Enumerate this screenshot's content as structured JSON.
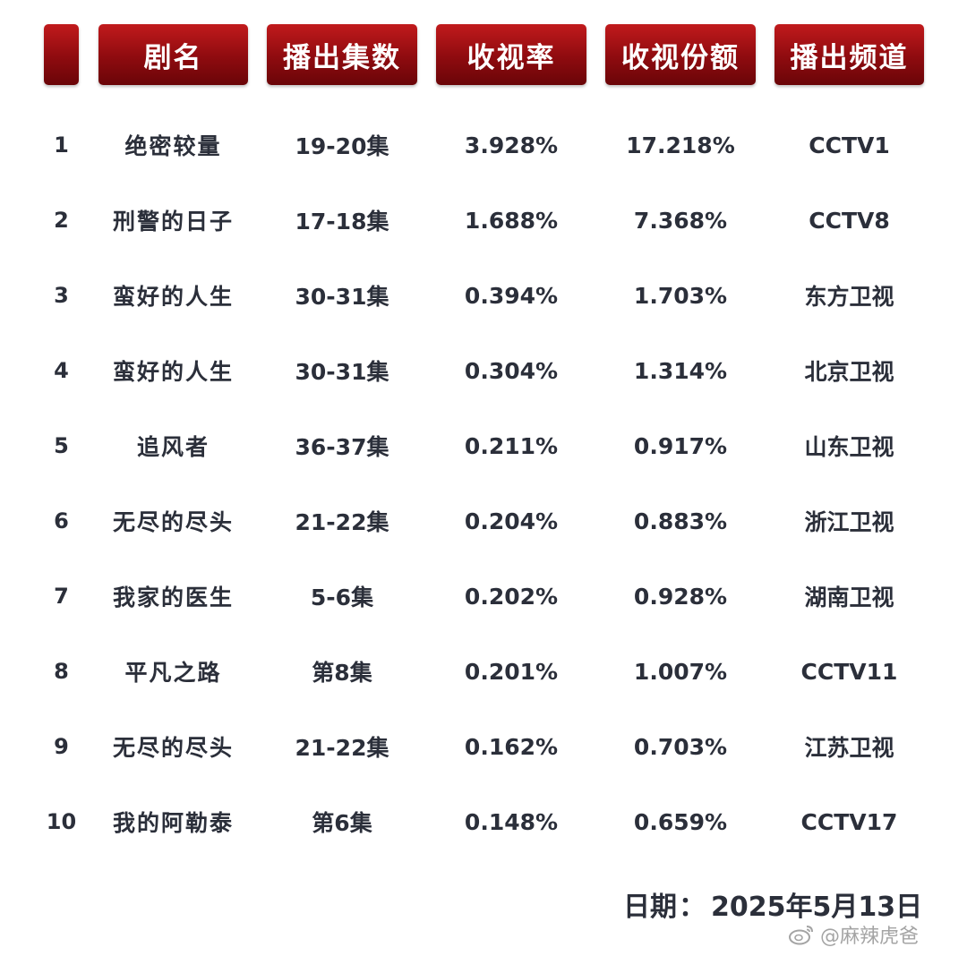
{
  "chart_data": {
    "type": "table",
    "columns": [
      "",
      "剧名",
      "播出集数",
      "收视率",
      "收视份额",
      "播出频道"
    ],
    "rows": [
      {
        "rank": "1",
        "name": "绝密较量",
        "episodes": "19-20集",
        "rating": "3.928%",
        "share": "17.218%",
        "channel": "CCTV1"
      },
      {
        "rank": "2",
        "name": "刑警的日子",
        "episodes": "17-18集",
        "rating": "1.688%",
        "share": "7.368%",
        "channel": "CCTV8"
      },
      {
        "rank": "3",
        "name": "蛮好的人生",
        "episodes": "30-31集",
        "rating": "0.394%",
        "share": "1.703%",
        "channel": "东方卫视"
      },
      {
        "rank": "4",
        "name": "蛮好的人生",
        "episodes": "30-31集",
        "rating": "0.304%",
        "share": "1.314%",
        "channel": "北京卫视"
      },
      {
        "rank": "5",
        "name": "追风者",
        "episodes": "36-37集",
        "rating": "0.211%",
        "share": "0.917%",
        "channel": "山东卫视"
      },
      {
        "rank": "6",
        "name": "无尽的尽头",
        "episodes": "21-22集",
        "rating": "0.204%",
        "share": "0.883%",
        "channel": "浙江卫视"
      },
      {
        "rank": "7",
        "name": "我家的医生",
        "episodes": "5-6集",
        "rating": "0.202%",
        "share": "0.928%",
        "channel": "湖南卫视"
      },
      {
        "rank": "8",
        "name": "平凡之路",
        "episodes": "第8集",
        "rating": "0.201%",
        "share": "1.007%",
        "channel": "CCTV11"
      },
      {
        "rank": "9",
        "name": "无尽的尽头",
        "episodes": "21-22集",
        "rating": "0.162%",
        "share": "0.703%",
        "channel": "江苏卫视"
      },
      {
        "rank": "10",
        "name": "我的阿勒泰",
        "episodes": "第6集",
        "rating": "0.148%",
        "share": "0.659%",
        "channel": "CCTV17"
      }
    ]
  },
  "footer": {
    "date_label": "日期",
    "date_sep": "：",
    "date_value": "2025年5月13日"
  },
  "watermark": {
    "text": "@麻辣虎爸",
    "icon": "weibo-icon"
  },
  "colors": {
    "header_red": "#8e0b0f",
    "header_text": "#ffffff",
    "body_text": "#2b2f3a"
  }
}
